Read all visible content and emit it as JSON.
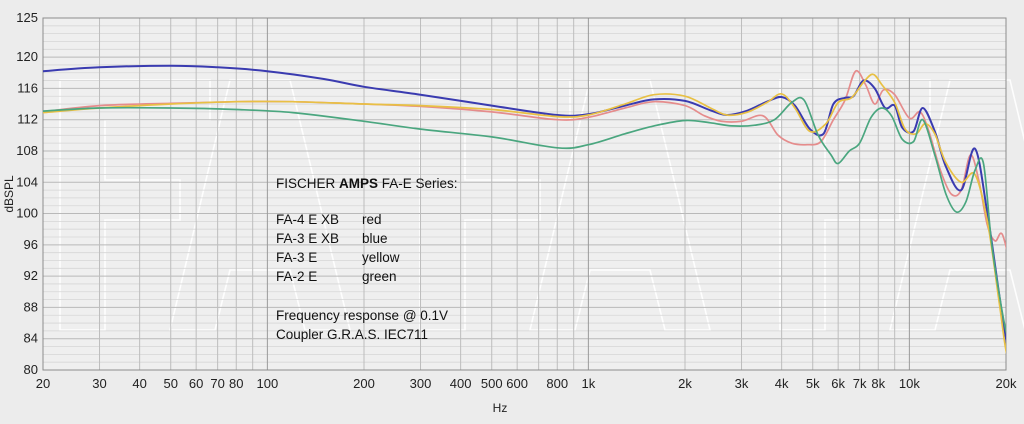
{
  "chart_data": {
    "type": "line",
    "x_scale": "log",
    "xlabel": "Hz",
    "ylabel": "dBSPL",
    "xlim": [
      20,
      20000
    ],
    "ylim": [
      80,
      125
    ],
    "x_ticks": [
      20,
      30,
      40,
      50,
      60,
      70,
      80,
      100,
      200,
      300,
      400,
      500,
      600,
      800,
      1000,
      2000,
      3000,
      4000,
      5000,
      6000,
      7000,
      8000,
      10000,
      20000
    ],
    "x_tick_labels": [
      "20",
      "30",
      "40",
      "50",
      "60",
      "70",
      "80",
      "100",
      "200",
      "300",
      "400",
      "500",
      "600",
      "800",
      "1k",
      "2k",
      "3k",
      "4k",
      "5k",
      "6k",
      "7k",
      "8k",
      "10k",
      "20k"
    ],
    "y_ticks": [
      80,
      84,
      88,
      92,
      96,
      100,
      104,
      108,
      112,
      116,
      120,
      125
    ],
    "grid": true,
    "annotation": {
      "title_pre": "FISCHER ",
      "title_bold": "AMPS",
      "title_post": " FA-E Series:",
      "legend": [
        {
          "model": "FA-4 E XB",
          "color_name": "red"
        },
        {
          "model": "FA-3 E XB",
          "color_name": "blue"
        },
        {
          "model": "FA-3 E",
          "color_name": "yellow"
        },
        {
          "model": "FA-2 E",
          "color_name": "green"
        }
      ],
      "line1": "Frequency response @ 0.1V",
      "line2": "Coupler G.R.A.S. IEC711"
    },
    "series": [
      {
        "name": "FA-4 E XB",
        "color": "#e58c8c",
        "points": [
          [
            20,
            113
          ],
          [
            30,
            113.8
          ],
          [
            50,
            114.1
          ],
          [
            80,
            114.3
          ],
          [
            120,
            114.3
          ],
          [
            200,
            114
          ],
          [
            300,
            113.7
          ],
          [
            500,
            113
          ],
          [
            800,
            112
          ],
          [
            1000,
            112.3
          ],
          [
            1300,
            113.5
          ],
          [
            1600,
            114.3
          ],
          [
            2000,
            113.8
          ],
          [
            2300,
            112.5
          ],
          [
            2600,
            111.8
          ],
          [
            3000,
            111.8
          ],
          [
            3500,
            112.5
          ],
          [
            3900,
            110
          ],
          [
            4300,
            109
          ],
          [
            4800,
            108.8
          ],
          [
            5300,
            109.2
          ],
          [
            5800,
            112
          ],
          [
            6300,
            114.5
          ],
          [
            6800,
            118.2
          ],
          [
            7300,
            116.5
          ],
          [
            7800,
            114
          ],
          [
            8300,
            115.8
          ],
          [
            9000,
            115.2
          ],
          [
            10000,
            112.2
          ],
          [
            10800,
            113
          ],
          [
            11500,
            110.5
          ],
          [
            12500,
            105.5
          ],
          [
            13500,
            102.5
          ],
          [
            14500,
            103
          ],
          [
            15500,
            107.5
          ],
          [
            16500,
            104
          ],
          [
            17500,
            98.5
          ],
          [
            18500,
            96.5
          ],
          [
            19500,
            97.3
          ],
          [
            21000,
            92
          ]
        ]
      },
      {
        "name": "FA-3 E XB",
        "color": "#3a3bb0",
        "points": [
          [
            20,
            118.2
          ],
          [
            30,
            118.7
          ],
          [
            50,
            118.9
          ],
          [
            70,
            118.7
          ],
          [
            100,
            118.2
          ],
          [
            150,
            117.2
          ],
          [
            200,
            116.2
          ],
          [
            300,
            115.2
          ],
          [
            500,
            113.8
          ],
          [
            800,
            112.6
          ],
          [
            1000,
            112.7
          ],
          [
            1300,
            113.8
          ],
          [
            1600,
            114.6
          ],
          [
            2000,
            114.4
          ],
          [
            2400,
            113.2
          ],
          [
            2700,
            112.6
          ],
          [
            3100,
            113.1
          ],
          [
            3600,
            114.3
          ],
          [
            4000,
            114.9
          ],
          [
            4400,
            113.8
          ],
          [
            4900,
            110.8
          ],
          [
            5400,
            110.2
          ],
          [
            5800,
            114
          ],
          [
            6300,
            114.8
          ],
          [
            6700,
            115
          ],
          [
            7200,
            117
          ],
          [
            7800,
            116
          ],
          [
            8400,
            113.5
          ],
          [
            9000,
            113.8
          ],
          [
            9500,
            111
          ],
          [
            10300,
            110.5
          ],
          [
            11000,
            113.5
          ],
          [
            12000,
            110.5
          ],
          [
            13000,
            106
          ],
          [
            14500,
            103
          ],
          [
            16000,
            108.3
          ],
          [
            17500,
            100
          ],
          [
            19000,
            90
          ],
          [
            20000,
            84
          ],
          [
            21000,
            81
          ]
        ]
      },
      {
        "name": "FA-3 E",
        "color": "#e8c044",
        "points": [
          [
            20,
            112.9
          ],
          [
            30,
            113.5
          ],
          [
            50,
            114
          ],
          [
            80,
            114.3
          ],
          [
            120,
            114.3
          ],
          [
            200,
            114
          ],
          [
            300,
            113.8
          ],
          [
            500,
            113.3
          ],
          [
            800,
            112.4
          ],
          [
            1000,
            112.6
          ],
          [
            1300,
            114
          ],
          [
            1600,
            115.2
          ],
          [
            2000,
            115
          ],
          [
            2400,
            113.5
          ],
          [
            2700,
            112.6
          ],
          [
            3100,
            112.9
          ],
          [
            3600,
            114.2
          ],
          [
            4000,
            115.3
          ],
          [
            4400,
            113.5
          ],
          [
            4900,
            110.5
          ],
          [
            5500,
            111.5
          ],
          [
            6000,
            114.2
          ],
          [
            6600,
            114.8
          ],
          [
            7200,
            116.8
          ],
          [
            7700,
            117.8
          ],
          [
            8200,
            116.5
          ],
          [
            9000,
            114.2
          ],
          [
            9700,
            110.8
          ],
          [
            10500,
            110.2
          ],
          [
            11200,
            111.5
          ],
          [
            12000,
            110.2
          ],
          [
            13000,
            106.5
          ],
          [
            14500,
            104
          ],
          [
            16000,
            105
          ],
          [
            17500,
            99
          ],
          [
            19000,
            89
          ],
          [
            20000,
            82.5
          ],
          [
            21000,
            80
          ]
        ]
      },
      {
        "name": "FA-2 E",
        "color": "#4aa67f",
        "points": [
          [
            20,
            113.1
          ],
          [
            30,
            113.5
          ],
          [
            50,
            113.5
          ],
          [
            80,
            113.3
          ],
          [
            120,
            112.9
          ],
          [
            200,
            111.8
          ],
          [
            300,
            110.8
          ],
          [
            500,
            109.8
          ],
          [
            800,
            108.4
          ],
          [
            1000,
            108.8
          ],
          [
            1300,
            110.2
          ],
          [
            1600,
            111.2
          ],
          [
            2000,
            111.9
          ],
          [
            2400,
            111.6
          ],
          [
            2800,
            111.2
          ],
          [
            3300,
            111.3
          ],
          [
            3800,
            112
          ],
          [
            4300,
            114.2
          ],
          [
            4700,
            114.5
          ],
          [
            5200,
            110
          ],
          [
            5700,
            107.5
          ],
          [
            6000,
            106.4
          ],
          [
            6500,
            108
          ],
          [
            7000,
            109
          ],
          [
            7600,
            112.3
          ],
          [
            8200,
            113.5
          ],
          [
            8800,
            112.5
          ],
          [
            9500,
            109.5
          ],
          [
            10300,
            109.2
          ],
          [
            11000,
            112
          ],
          [
            12000,
            107.5
          ],
          [
            13000,
            102.5
          ],
          [
            14000,
            100.2
          ],
          [
            15000,
            101.5
          ],
          [
            16000,
            105.5
          ],
          [
            17000,
            106.5
          ],
          [
            18000,
            96.5
          ],
          [
            19000,
            90
          ],
          [
            20000,
            85
          ],
          [
            21000,
            83
          ]
        ]
      }
    ]
  }
}
